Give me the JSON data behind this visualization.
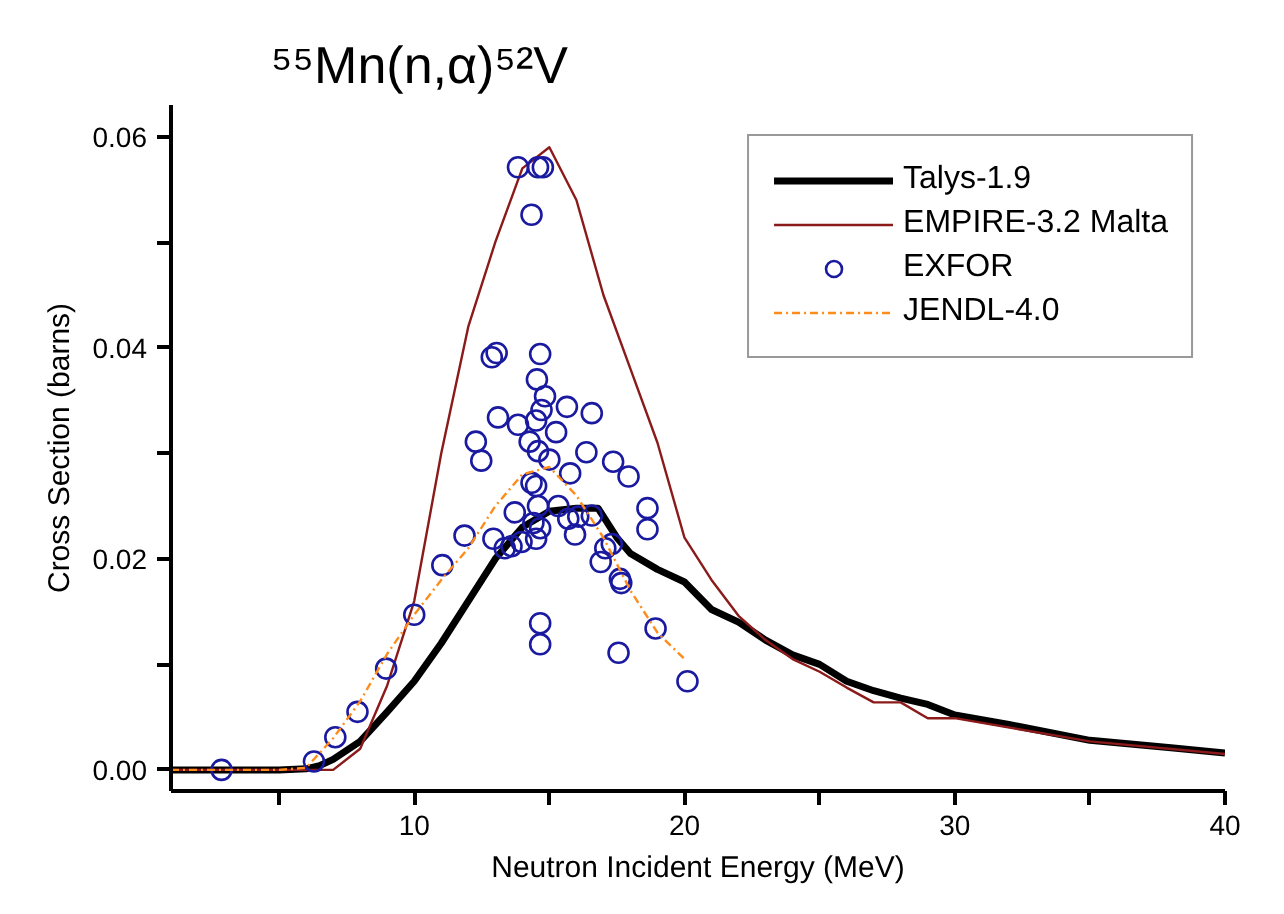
{
  "chart_data": {
    "type": "line",
    "title": "⁵⁵Mn(n,α)⁵²V",
    "xlabel": "Neutron Incident Energy (MeV)",
    "ylabel": "Cross Section (barns)",
    "xlim": [
      1,
      40
    ],
    "ylim": [
      -0.002,
      0.063
    ],
    "xticks": [
      {
        "value": 5,
        "label": null
      },
      10,
      {
        "value": 15,
        "label": null
      },
      20,
      {
        "value": 25,
        "label": null
      },
      30,
      {
        "value": 35,
        "label": null
      },
      40
    ],
    "yticks": [
      {
        "value": 0,
        "label": "0.00"
      },
      {
        "value": 0.01,
        "label": null
      },
      {
        "value": 0.02,
        "label": "0.02"
      },
      {
        "value": 0.03,
        "label": null
      },
      {
        "value": 0.04,
        "label": "0.04"
      },
      {
        "value": 0.05,
        "label": null
      },
      {
        "value": 0.06,
        "label": "0.06"
      }
    ],
    "grid": false,
    "legend": "top right",
    "series": [
      {
        "name": "Talys-1.9",
        "color": "#000000",
        "line_style": "solid",
        "x": [
          1,
          5,
          6,
          6.5,
          7,
          8,
          9,
          10,
          11,
          12,
          13,
          13.5,
          14,
          15,
          16,
          16.8,
          17.5,
          18,
          19,
          20,
          21,
          22,
          23,
          24,
          25,
          26,
          27,
          28,
          29,
          30,
          32,
          35,
          38,
          40
        ],
        "values": [
          0,
          0,
          0.0001,
          0.0004,
          0.001,
          0.0027,
          0.0055,
          0.0084,
          0.012,
          0.016,
          0.02,
          0.0215,
          0.023,
          0.0245,
          0.0248,
          0.0248,
          0.022,
          0.0205,
          0.019,
          0.0178,
          0.0152,
          0.014,
          0.0123,
          0.0109,
          0.01,
          0.0084,
          0.0075,
          0.0068,
          0.0062,
          0.0052,
          0.0043,
          0.0028,
          0.0021,
          0.0016
        ]
      },
      {
        "name": "EMPIRE-3.2 Malta",
        "color": "#8b1a1a",
        "line_style": "solid",
        "x": [
          1,
          7,
          8,
          9,
          10,
          11,
          12,
          13,
          14,
          15,
          16,
          17,
          18,
          19,
          20,
          21,
          22,
          23,
          24,
          25,
          26,
          27,
          28,
          29,
          30,
          35,
          40
        ],
        "values": [
          0,
          0,
          0.002,
          0.008,
          0.016,
          0.03,
          0.042,
          0.05,
          0.057,
          0.059,
          0.054,
          0.045,
          0.038,
          0.031,
          0.022,
          0.018,
          0.0146,
          0.0123,
          0.0105,
          0.0093,
          0.0078,
          0.0064,
          0.0064,
          0.0049,
          0.0049,
          0.0027,
          0.0015
        ]
      },
      {
        "name": "EXFOR",
        "type": "scatter",
        "color": "#1a1aa0",
        "marker": "circle",
        "x": [
          2.87,
          6.29,
          7.08,
          7.9,
          8.96,
          10.0,
          11.04,
          11.86,
          12.28,
          12.48,
          12.87,
          13.05,
          13.1,
          12.93,
          13.35,
          13.6,
          13.84,
          14.58,
          14.76,
          14.34,
          14.66,
          14.54,
          14.84,
          14.71,
          15.65,
          16.57,
          13.84,
          14.51,
          15.25,
          14.27,
          14.58,
          15.0,
          16.37,
          17.36,
          17.93,
          15.77,
          14.34,
          14.51,
          14.58,
          15.33,
          18.63,
          18.63,
          13.72,
          14.41,
          15.7,
          16.07,
          16.57,
          15.95,
          13.97,
          14.51,
          14.66,
          17.31,
          17.07,
          16.9,
          17.61,
          17.66,
          18.93,
          14.66,
          14.66,
          17.56,
          20.11
        ],
        "values": [
          0.0,
          0.0008,
          0.0031,
          0.0055,
          0.0096,
          0.0147,
          0.0194,
          0.0222,
          0.0311,
          0.0293,
          0.0391,
          0.0395,
          0.0334,
          0.0219,
          0.021,
          0.0212,
          0.0571,
          0.0571,
          0.0571,
          0.0526,
          0.0394,
          0.037,
          0.0354,
          0.0341,
          0.0344,
          0.0338,
          0.0327,
          0.0331,
          0.032,
          0.0311,
          0.0302,
          0.0294,
          0.0301,
          0.0292,
          0.0278,
          0.0281,
          0.0272,
          0.0269,
          0.025,
          0.025,
          0.0248,
          0.0228,
          0.0244,
          0.0234,
          0.0238,
          0.024,
          0.0241,
          0.0223,
          0.0216,
          0.0219,
          0.0229,
          0.0214,
          0.021,
          0.0197,
          0.0181,
          0.0177,
          0.0134,
          0.0139,
          0.0119,
          0.0111,
          0.0084
        ]
      },
      {
        "name": "JENDL-4.0",
        "color": "#ff8c1a",
        "line_style": "dashed",
        "x": [
          1,
          5,
          6,
          7,
          8,
          9,
          10,
          11,
          12,
          13,
          14,
          15,
          16,
          17,
          18,
          19,
          20
        ],
        "values": [
          0,
          0,
          0.0002,
          0.003,
          0.0065,
          0.011,
          0.0147,
          0.018,
          0.021,
          0.025,
          0.028,
          0.0287,
          0.026,
          0.022,
          0.017,
          0.013,
          0.0105
        ]
      }
    ]
  }
}
